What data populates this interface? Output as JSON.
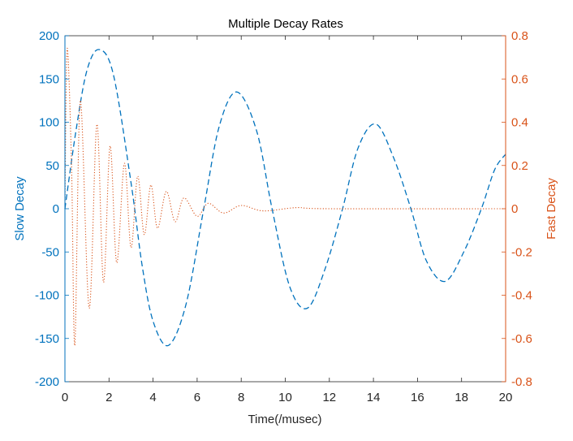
{
  "chart_data": {
    "type": "line",
    "title": "Multiple Decay Rates",
    "xlabel": "Time(/musec)",
    "xlim": [
      0,
      20
    ],
    "xticks": [
      0,
      2,
      4,
      6,
      8,
      10,
      12,
      14,
      16,
      18,
      20
    ],
    "xtick_labels": [
      "0",
      "2",
      "4",
      "6",
      "8",
      "10",
      "12",
      "14",
      "16",
      "18",
      "20"
    ],
    "grid": false,
    "left_axis": {
      "label": "Slow Decay",
      "ylim": [
        -200,
        200
      ],
      "ticks": [
        -200,
        -150,
        -100,
        -50,
        0,
        50,
        100,
        150,
        200
      ],
      "tick_labels": [
        "-200",
        "-150",
        "-100",
        "-50",
        "0",
        "50",
        "100",
        "150",
        "200"
      ],
      "color": "#0072bd"
    },
    "right_axis": {
      "label": "Fast Decay",
      "ylim": [
        -0.8,
        0.8
      ],
      "ticks": [
        -0.8,
        -0.6,
        -0.4,
        -0.2,
        0,
        0.2,
        0.4,
        0.6,
        0.8
      ],
      "tick_labels": [
        "-0.8",
        "-0.6",
        "-0.4",
        "-0.2",
        "0",
        "0.2",
        "0.4",
        "0.6",
        "0.8"
      ],
      "color": "#d95319"
    },
    "series": [
      {
        "axis": "left",
        "style": "dashed",
        "color": "#0072bd",
        "points": [
          [
            0,
            0
          ],
          [
            0.5,
            90
          ],
          [
            1.0,
            160
          ],
          [
            1.55,
            184
          ],
          [
            2.2,
            155
          ],
          [
            3.0,
            30
          ],
          [
            3.5,
            -65
          ],
          [
            4.0,
            -130
          ],
          [
            4.7,
            -158
          ],
          [
            5.5,
            -110
          ],
          [
            6.3,
            0
          ],
          [
            7.0,
            95
          ],
          [
            7.8,
            135
          ],
          [
            8.7,
            90
          ],
          [
            9.4,
            0
          ],
          [
            10.2,
            -90
          ],
          [
            11.0,
            -115
          ],
          [
            11.8,
            -70
          ],
          [
            12.6,
            0
          ],
          [
            13.3,
            70
          ],
          [
            14.1,
            98
          ],
          [
            14.9,
            60
          ],
          [
            15.7,
            0
          ],
          [
            16.4,
            -60
          ],
          [
            17.25,
            -84
          ],
          [
            18.1,
            -50
          ],
          [
            18.9,
            0
          ],
          [
            19.5,
            45
          ],
          [
            20,
            63
          ]
        ]
      },
      {
        "axis": "right",
        "style": "dotted",
        "color": "#d95319",
        "points": [
          [
            0,
            0
          ],
          [
            0.1,
            0.74
          ],
          [
            0.3,
            0.2
          ],
          [
            0.45,
            -0.63
          ],
          [
            0.7,
            0.5
          ],
          [
            1.1,
            -0.46
          ],
          [
            1.45,
            0.39
          ],
          [
            1.75,
            -0.34
          ],
          [
            2.05,
            0.29
          ],
          [
            2.35,
            -0.25
          ],
          [
            2.7,
            0.21
          ],
          [
            3.0,
            -0.18
          ],
          [
            3.3,
            0.15
          ],
          [
            3.6,
            -0.12
          ],
          [
            3.9,
            0.11
          ],
          [
            4.2,
            -0.09
          ],
          [
            4.6,
            0.08
          ],
          [
            5.0,
            -0.06
          ],
          [
            5.4,
            0.05
          ],
          [
            6.0,
            -0.035
          ],
          [
            6.5,
            0.025
          ],
          [
            7.2,
            -0.02
          ],
          [
            8.0,
            0.015
          ],
          [
            9.0,
            -0.01
          ],
          [
            10.5,
            0.005
          ],
          [
            12,
            0
          ],
          [
            20,
            0
          ]
        ]
      }
    ]
  }
}
